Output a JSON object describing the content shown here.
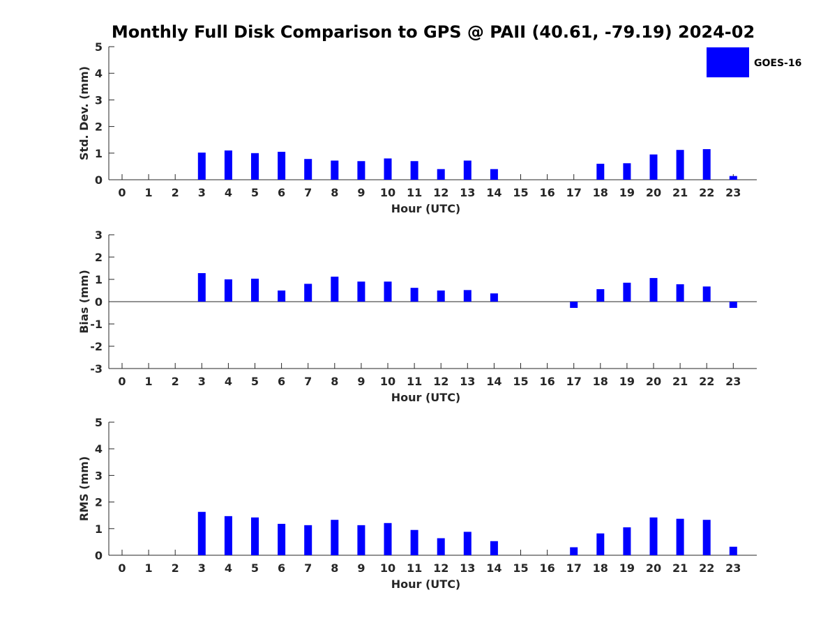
{
  "chart_data": {
    "type": "bar",
    "title": "Monthly Full Disk Comparison to GPS @ PAII (40.61, -79.19) 2024-02",
    "legend": {
      "label": "GOES-16",
      "color": "#0000ff",
      "placement": "top-right"
    },
    "bar_color": "#0000ff",
    "panels": [
      {
        "name": "std-dev",
        "ylabel": "Std. Dev. (mm)",
        "xlabel": "Hour (UTC)",
        "ylim": [
          0,
          5
        ],
        "yticks": [
          0,
          1,
          2,
          3,
          4,
          5
        ],
        "categories": [
          "0",
          "1",
          "2",
          "3",
          "4",
          "5",
          "6",
          "7",
          "8",
          "9",
          "10",
          "11",
          "12",
          "13",
          "14",
          "15",
          "16",
          "17",
          "18",
          "19",
          "20",
          "21",
          "22",
          "23"
        ],
        "values": [
          null,
          null,
          null,
          1.02,
          1.1,
          1.0,
          1.05,
          0.78,
          0.72,
          0.7,
          0.8,
          0.7,
          0.4,
          0.72,
          0.4,
          null,
          null,
          null,
          0.6,
          0.62,
          0.95,
          1.12,
          1.15,
          0.14
        ]
      },
      {
        "name": "bias",
        "ylabel": "Bias (mm)",
        "xlabel": "Hour (UTC)",
        "ylim": [
          -3,
          3
        ],
        "yticks": [
          -3,
          -2,
          -1,
          0,
          1,
          2,
          3
        ],
        "zero_line": true,
        "categories": [
          "0",
          "1",
          "2",
          "3",
          "4",
          "5",
          "6",
          "7",
          "8",
          "9",
          "10",
          "11",
          "12",
          "13",
          "14",
          "15",
          "16",
          "17",
          "18",
          "19",
          "20",
          "21",
          "22",
          "23"
        ],
        "values": [
          null,
          null,
          null,
          1.28,
          1.0,
          1.03,
          0.5,
          0.8,
          1.12,
          0.9,
          0.9,
          0.62,
          0.5,
          0.52,
          0.37,
          null,
          null,
          -0.28,
          0.56,
          0.85,
          1.06,
          0.78,
          0.68,
          -0.28
        ]
      },
      {
        "name": "rms",
        "ylabel": "RMS (mm)",
        "xlabel": "Hour (UTC)",
        "ylim": [
          0,
          5
        ],
        "yticks": [
          0,
          1,
          2,
          3,
          4,
          5
        ],
        "categories": [
          "0",
          "1",
          "2",
          "3",
          "4",
          "5",
          "6",
          "7",
          "8",
          "9",
          "10",
          "11",
          "12",
          "13",
          "14",
          "15",
          "16",
          "17",
          "18",
          "19",
          "20",
          "21",
          "22",
          "23"
        ],
        "values": [
          null,
          null,
          null,
          1.63,
          1.47,
          1.42,
          1.18,
          1.13,
          1.33,
          1.13,
          1.21,
          0.95,
          0.64,
          0.88,
          0.53,
          null,
          null,
          0.3,
          0.82,
          1.05,
          1.42,
          1.37,
          1.33,
          0.32
        ]
      }
    ]
  }
}
